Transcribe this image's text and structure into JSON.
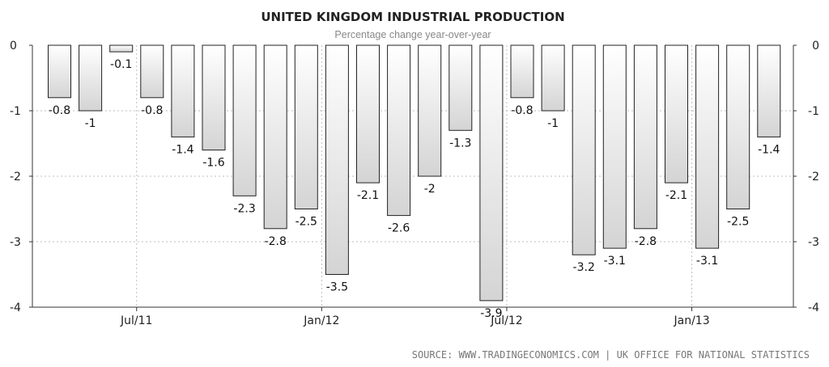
{
  "chart_data": {
    "type": "bar",
    "title": "UNITED KINGDOM INDUSTRIAL PRODUCTION",
    "subtitle": "Percentage change year-over-year",
    "source": "SOURCE: WWW.TRADINGECONOMICS.COM | UK OFFICE FOR NATIONAL STATISTICS",
    "values": [
      -0.8,
      -1,
      -0.1,
      -0.8,
      -1.4,
      -1.6,
      -2.3,
      -2.8,
      -2.5,
      -3.5,
      -2.1,
      -2.6,
      -2,
      -1.3,
      -3.9,
      -0.8,
      -1,
      -3.2,
      -3.1,
      -2.8,
      -2.1,
      -3.1,
      -2.5,
      -1.4
    ],
    "value_labels": [
      "-0.8",
      "-1",
      "-0.1",
      "-0.8",
      "-1.4",
      "-1.6",
      "-2.3",
      "-2.8",
      "-2.5",
      "-3.5",
      "-2.1",
      "-2.6",
      "-2",
      "-1.3",
      "-3.9",
      "-0.8",
      "-1",
      "-3.2",
      "-3.1",
      "-2.8",
      "-2.1",
      "-3.1",
      "-2.5",
      "-1.4"
    ],
    "x_ticks": [
      {
        "label": "Jul/11",
        "index": 2
      },
      {
        "label": "Jan/12",
        "index": 8
      },
      {
        "label": "Jul/12",
        "index": 14
      },
      {
        "label": "Jan/13",
        "index": 20
      }
    ],
    "y_ticks": [
      0,
      -1,
      -2,
      -3,
      -4
    ],
    "ylim": [
      -4,
      0
    ],
    "grid": true,
    "bar_fill_top": "#ffffff",
    "bar_fill_bottom": "#d4d4d4",
    "bar_stroke": "#222222"
  }
}
